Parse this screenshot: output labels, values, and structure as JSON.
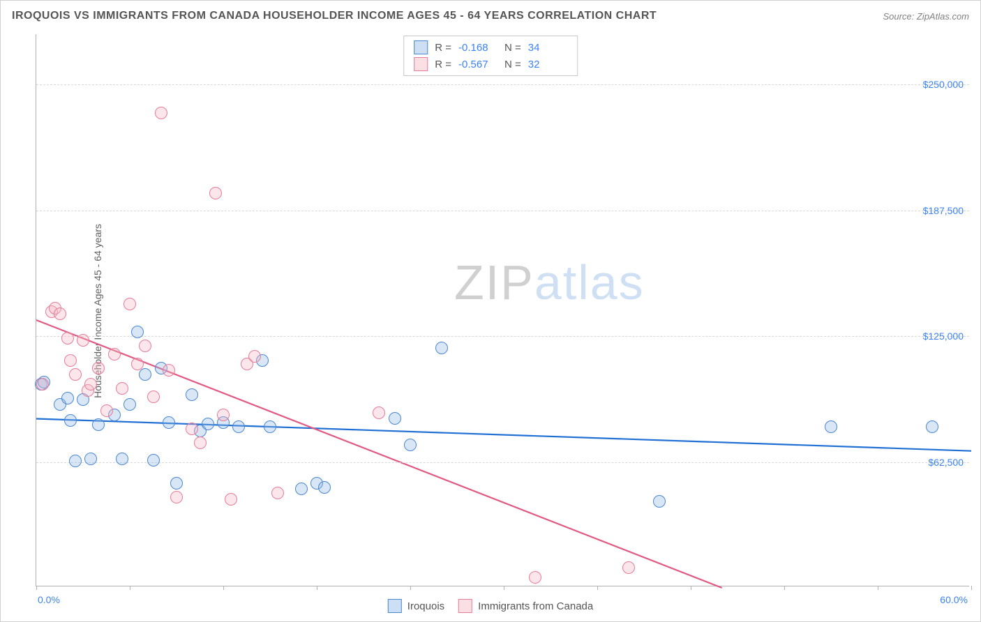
{
  "title": "IROQUOIS VS IMMIGRANTS FROM CANADA HOUSEHOLDER INCOME AGES 45 - 64 YEARS CORRELATION CHART",
  "source": "Source: ZipAtlas.com",
  "ylabel": "Householder Income Ages 45 - 64 years",
  "watermark": {
    "part1": "ZIP",
    "part2": "atlas"
  },
  "chart": {
    "type": "scatter",
    "background_color": "#ffffff",
    "grid_color": "#d8d8d8",
    "axis_color": "#b0b0b0",
    "tick_label_color": "#3b82f6",
    "xlim": [
      0,
      60
    ],
    "ylim": [
      0,
      275000
    ],
    "x_unit": "%",
    "x_min_label": "0.0%",
    "x_max_label": "60.0%",
    "x_ticks": [
      0,
      6,
      12,
      18,
      24,
      30,
      36,
      42,
      48,
      54,
      60
    ],
    "y_gridlines": [
      62500,
      125000,
      187500,
      250000
    ],
    "y_tick_labels": [
      "$62,500",
      "$125,000",
      "$187,500",
      "$250,000"
    ],
    "marker_radius": 9,
    "marker_fill_opacity": 0.35,
    "marker_stroke_width": 1.2,
    "trend_line_width": 2.2
  },
  "series": [
    {
      "key": "iroquois",
      "label": "Iroquois",
      "fill": "#8fb7e6",
      "stroke": "#4a86d0",
      "trend_color": "#1f6fd4",
      "R": "-0.168",
      "N": "34",
      "trend": {
        "x1": 0,
        "y1": 84000,
        "x2": 60,
        "y2": 68000
      },
      "points": [
        [
          0.3,
          100000
        ],
        [
          0.5,
          101000
        ],
        [
          1.5,
          90000
        ],
        [
          2.0,
          93000
        ],
        [
          2.2,
          82000
        ],
        [
          2.5,
          62000
        ],
        [
          3.0,
          92500
        ],
        [
          3.5,
          63000
        ],
        [
          4.0,
          80000
        ],
        [
          5.0,
          85000
        ],
        [
          5.5,
          63000
        ],
        [
          6.0,
          90000
        ],
        [
          6.5,
          126000
        ],
        [
          7.0,
          105000
        ],
        [
          7.5,
          62500
        ],
        [
          8.0,
          108000
        ],
        [
          8.5,
          81000
        ],
        [
          9.0,
          51000
        ],
        [
          10.0,
          95000
        ],
        [
          10.5,
          77000
        ],
        [
          11.0,
          80500
        ],
        [
          12.0,
          81000
        ],
        [
          13.0,
          79000
        ],
        [
          14.5,
          112000
        ],
        [
          15.0,
          79000
        ],
        [
          17.0,
          48000
        ],
        [
          18.0,
          51000
        ],
        [
          18.5,
          49000
        ],
        [
          23.0,
          83000
        ],
        [
          24.0,
          70000
        ],
        [
          26.0,
          118000
        ],
        [
          40.0,
          42000
        ],
        [
          51.0,
          79000
        ],
        [
          57.5,
          79000
        ]
      ]
    },
    {
      "key": "canada",
      "label": "Immigrants from Canada",
      "fill": "#f4b8c6",
      "stroke": "#e77b97",
      "trend_color": "#e05a82",
      "R": "-0.567",
      "N": "32",
      "trend": {
        "x1": 0,
        "y1": 133000,
        "x2": 44,
        "y2": 0
      },
      "points": [
        [
          0.4,
          100000
        ],
        [
          1.0,
          136000
        ],
        [
          1.2,
          138000
        ],
        [
          1.5,
          135000
        ],
        [
          2.0,
          123000
        ],
        [
          2.2,
          112000
        ],
        [
          2.5,
          105000
        ],
        [
          3.0,
          122000
        ],
        [
          3.3,
          97000
        ],
        [
          3.5,
          100000
        ],
        [
          4.0,
          108000
        ],
        [
          4.5,
          87000
        ],
        [
          5.0,
          115000
        ],
        [
          5.5,
          98000
        ],
        [
          6.0,
          140000
        ],
        [
          6.5,
          110000
        ],
        [
          7.0,
          119000
        ],
        [
          7.5,
          94000
        ],
        [
          8.0,
          235000
        ],
        [
          8.5,
          107000
        ],
        [
          9.0,
          44000
        ],
        [
          10.0,
          78000
        ],
        [
          10.5,
          71000
        ],
        [
          11.5,
          195000
        ],
        [
          12.0,
          85000
        ],
        [
          12.5,
          43000
        ],
        [
          13.5,
          110000
        ],
        [
          14.0,
          114000
        ],
        [
          15.5,
          46000
        ],
        [
          22.0,
          86000
        ],
        [
          32.0,
          4000
        ],
        [
          38.0,
          9000
        ]
      ]
    }
  ],
  "legend": {
    "r_label": "R  =",
    "n_label": "N  ="
  }
}
